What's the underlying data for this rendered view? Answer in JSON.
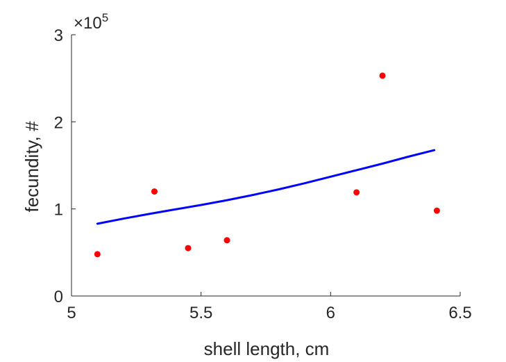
{
  "chart_data": {
    "type": "scatter",
    "title": "",
    "xlabel": "shell length, cm",
    "ylabel": "fecundity, #",
    "xlim": [
      5,
      6.5
    ],
    "ylim": [
      0,
      300000
    ],
    "x_ticks": [
      5,
      5.5,
      6,
      6.5
    ],
    "x_tick_labels": [
      "5",
      "5.5",
      "6",
      "6.5"
    ],
    "y_ticks": [
      0,
      100000,
      200000,
      300000
    ],
    "y_tick_labels": [
      "0",
      "1",
      "2",
      "3"
    ],
    "y_multiplier": {
      "prefix": "×10",
      "exponent": "5"
    },
    "grid": false,
    "series": [
      {
        "kind": "points",
        "color": "#ff0000",
        "x": [
          5.1,
          5.32,
          5.45,
          5.6,
          6.1,
          6.2,
          6.41
        ],
        "y": [
          48000,
          120000,
          55000,
          64000,
          119000,
          253000,
          98000
        ]
      },
      {
        "kind": "curve",
        "color": "#0000ff",
        "x": [
          5.1,
          5.2,
          5.3,
          5.4,
          5.5,
          5.6,
          5.7,
          5.8,
          5.9,
          6.0,
          6.1,
          6.2,
          6.3,
          6.4
        ],
        "y": [
          83000,
          88800,
          94200,
          99400,
          104500,
          110000,
          116000,
          122500,
          129500,
          137000,
          144500,
          152000,
          160000,
          167500
        ]
      }
    ]
  }
}
